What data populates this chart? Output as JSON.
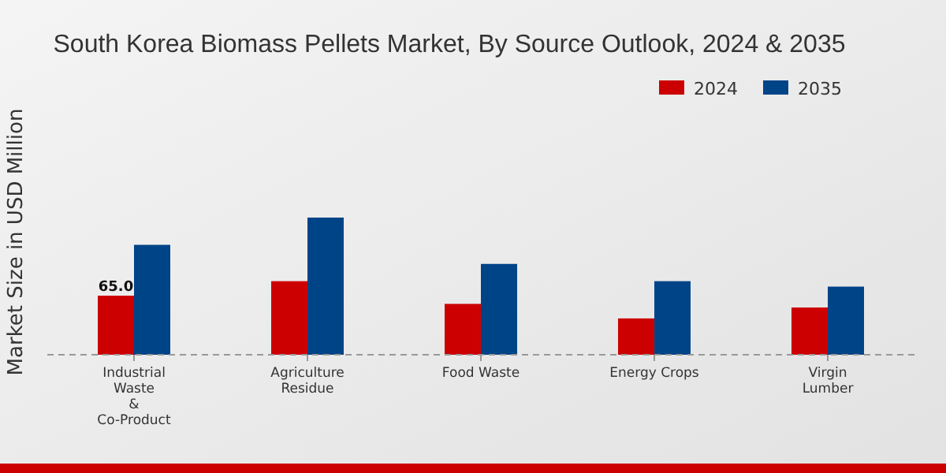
{
  "chart_data": {
    "type": "bar",
    "title": "South Korea Biomass Pellets Market, By Source Outlook, 2024 & 2035",
    "ylabel": "Market Size in USD Million",
    "categories": [
      "Industrial Waste & Co-Product",
      "Agriculture Residue",
      "Food Waste",
      "Energy Crops",
      "Virgin Lumber"
    ],
    "series": [
      {
        "name": "2024",
        "color": "#cc0000",
        "values": [
          65.0,
          81,
          56,
          40,
          52
        ],
        "value_labels": [
          "65.0",
          null,
          null,
          null,
          null
        ]
      },
      {
        "name": "2035",
        "color": "#004488",
        "values": [
          121,
          151,
          100,
          81,
          75
        ]
      }
    ],
    "legend": "top right"
  }
}
